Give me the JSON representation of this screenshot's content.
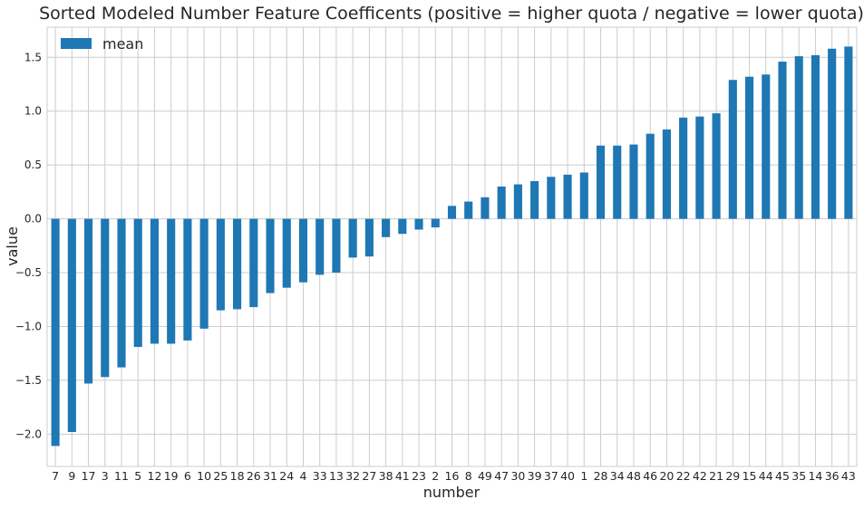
{
  "chart_data": {
    "type": "bar",
    "title": "Sorted Modeled Number Feature Coefficents (positive = higher quota / negative = lower quota)",
    "xlabel": "number",
    "ylabel": "value",
    "ylim": [
      -2.3,
      1.78
    ],
    "yticks": [
      -2.0,
      -1.5,
      -1.0,
      -0.5,
      0.0,
      0.5,
      1.0,
      1.5
    ],
    "ytick_labels": [
      "−2.0",
      "−1.5",
      "−1.0",
      "−0.5",
      "0.0",
      "0.5",
      "1.0",
      "1.5"
    ],
    "grid": true,
    "legend_position": "top-left",
    "bar_color": "#1f77b4",
    "series": [
      {
        "name": "mean",
        "values": [
          -2.11,
          -1.98,
          -1.53,
          -1.47,
          -1.38,
          -1.19,
          -1.16,
          -1.16,
          -1.13,
          -1.02,
          -0.85,
          -0.84,
          -0.82,
          -0.69,
          -0.64,
          -0.59,
          -0.52,
          -0.5,
          -0.36,
          -0.35,
          -0.17,
          -0.14,
          -0.1,
          -0.08,
          0.12,
          0.16,
          0.2,
          0.3,
          0.32,
          0.35,
          0.39,
          0.41,
          0.43,
          0.68,
          0.68,
          0.69,
          0.79,
          0.83,
          0.94,
          0.95,
          0.98,
          1.29,
          1.32,
          1.34,
          1.46,
          1.51,
          1.52,
          1.58,
          1.6
        ]
      }
    ],
    "categories": [
      "7",
      "9",
      "17",
      "3",
      "11",
      "5",
      "12",
      "19",
      "6",
      "10",
      "25",
      "18",
      "26",
      "31",
      "24",
      "4",
      "33",
      "13",
      "32",
      "27",
      "38",
      "41",
      "23",
      "2",
      "16",
      "8",
      "49",
      "47",
      "30",
      "39",
      "37",
      "40",
      "1",
      "28",
      "34",
      "48",
      "46",
      "20",
      "22",
      "42",
      "21",
      "29",
      "15",
      "44",
      "45",
      "35",
      "14",
      "36",
      "43"
    ]
  }
}
